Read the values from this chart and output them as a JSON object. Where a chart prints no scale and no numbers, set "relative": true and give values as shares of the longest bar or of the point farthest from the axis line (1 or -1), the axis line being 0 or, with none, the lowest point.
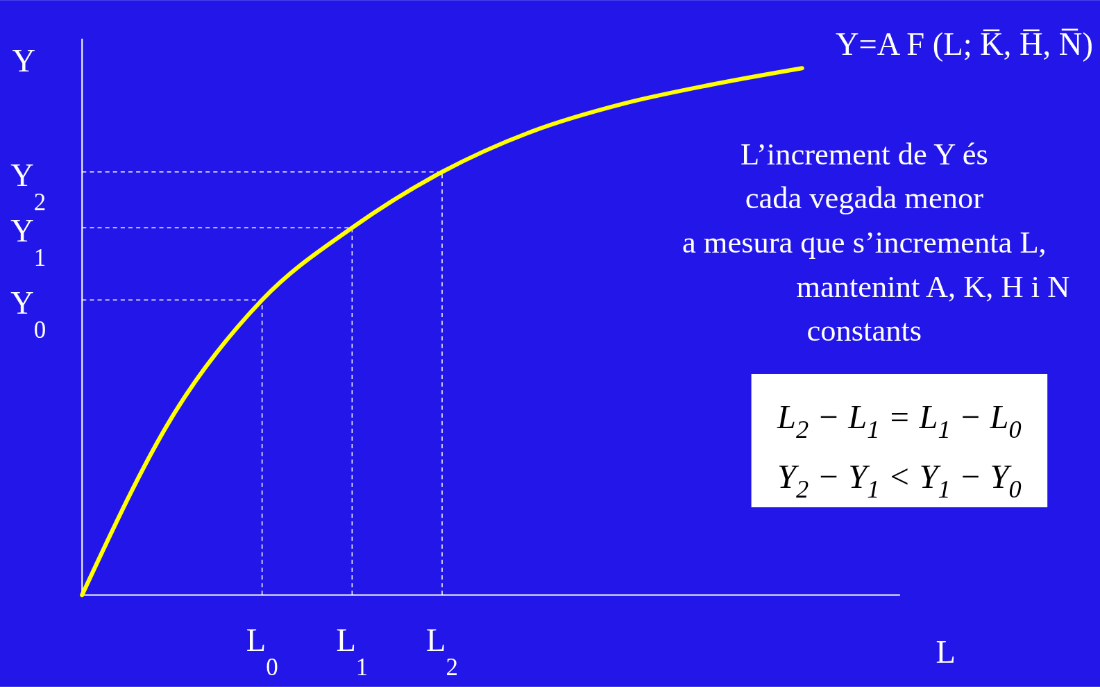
{
  "chart_data": {
    "type": "line",
    "title": "Y=A F (L; K̅, H̅, N̅)",
    "xlabel": "L",
    "ylabel": "Y",
    "relative": true,
    "categories": [
      null,
      null,
      "L$_{0}$",
      "L$_{1}$",
      "L$_{2}$",
      null,
      null,
      null,
      null
    ],
    "series": [
      {
        "color": "#ffff00",
        "values": [
          0,
          0.338,
          0.56,
          0.697,
          0.803,
          0.88,
          0.932,
          0.969,
          1
        ]
      }
    ],
    "annotations": [
      "L’increment de Y és\ncada vegada menor\na mesura que s’incrementa L,\nmantenint A, K, H i N\nconstants",
      "L$_{2}$ − L$_{1}$ = L$_{1}$ − L$_{0}$",
      "Y$_{2}$ − Y$_{1}$ < Y$_{1}$ − Y$_{0}$"
    ],
    "ref_lines": [
      {
        "axis": "y",
        "value": 0.56,
        "label": "Y$_{0}$",
        "color": "#ffffff",
        "line_style": "dashed"
      },
      {
        "axis": "y",
        "value": 0.697,
        "label": "Y$_{1}$",
        "color": "#ffffff",
        "line_style": "dashed"
      },
      {
        "axis": "y",
        "value": 0.803,
        "label": "Y$_{2}$",
        "color": "#ffffff",
        "line_style": "dashed"
      },
      {
        "axis": "x",
        "value": "L$_{0}$",
        "color": "#ffffff",
        "line_style": "dashed"
      },
      {
        "axis": "x",
        "value": "L$_{1}$",
        "color": "#ffffff",
        "line_style": "dashed"
      },
      {
        "axis": "x",
        "value": "L$_{2}$",
        "color": "#ffffff",
        "line_style": "dashed"
      }
    ],
    "line_style": "solid",
    "marker": "none",
    "grid": false
  }
}
